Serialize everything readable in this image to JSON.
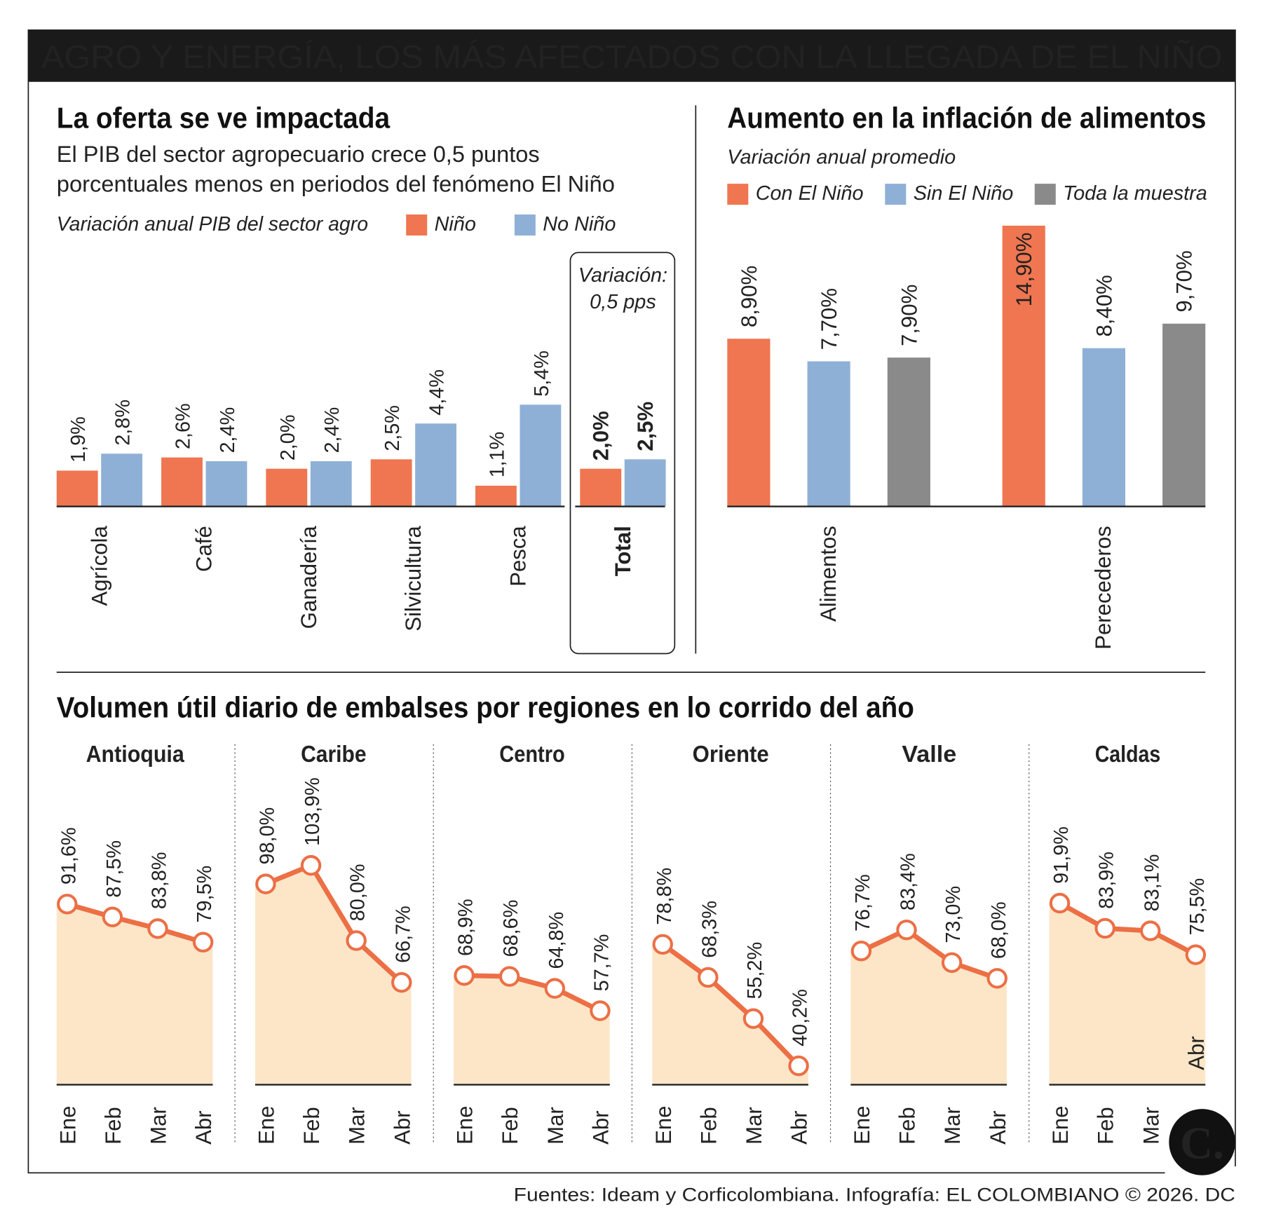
{
  "title": "AGRO Y ENERGÍA, LOS MÁS AFECTADOS CON LA LLEGADA DE EL NIÑO",
  "footer": "Fuentes: Ideam y Corficolombiana. Infografía: EL COLOMBIANO © 2026. DC",
  "logo": "C.",
  "colors": {
    "nino": "#ef7650",
    "no_nino": "#8fb0d6",
    "muestra": "#8a8a8a",
    "line": "#ec6f45",
    "area": "#fde6c8"
  },
  "chart_data": [
    {
      "type": "bar",
      "title": "La oferta se ve impactada",
      "subtitle": [
        "El PIB del sector agropecuario crece 0,5 puntos",
        "porcentuales menos en periodos del fenómeno El Niño"
      ],
      "ylabel": "Variación anual PIB del sector agro",
      "categories": [
        "Agrícola",
        "Café",
        "Ganadería",
        "Silvicultura",
        "Pesca",
        "Total"
      ],
      "series": [
        {
          "name": "Niño",
          "values": [
            1.9,
            2.6,
            2.0,
            2.5,
            1.1,
            2.0
          ],
          "labels": [
            "1,9%",
            "2,6%",
            "2,0%",
            "2,5%",
            "1,1%",
            "2,0%"
          ]
        },
        {
          "name": "No Niño",
          "values": [
            2.8,
            2.4,
            2.4,
            4.4,
            5.4,
            2.5
          ],
          "labels": [
            "2,8%",
            "2,4%",
            "2,4%",
            "4,4%",
            "5,4%",
            "2,5%"
          ]
        }
      ],
      "annotation": [
        "Variación:",
        "0,5 pps"
      ],
      "legend_position": "top-right"
    },
    {
      "type": "bar",
      "title": "Aumento en la inflación de alimentos",
      "ylabel": "Variación anual promedio",
      "categories": [
        "Alimentos",
        "Perecederos"
      ],
      "series": [
        {
          "name": "Con El Niño",
          "values": [
            8.9,
            14.9
          ],
          "labels": [
            "8,90%",
            "14,90%"
          ]
        },
        {
          "name": "Sin El Niño",
          "values": [
            7.7,
            8.4
          ],
          "labels": [
            "7,70%",
            "8,40%"
          ]
        },
        {
          "name": "Toda la muestra",
          "values": [
            7.9,
            9.7
          ],
          "labels": [
            "7,90%",
            "9,70%"
          ]
        }
      ],
      "legend_position": "top"
    },
    {
      "type": "area",
      "title": "Volumen útil diario de embalses por regiones en lo corrido del año",
      "x": [
        "Ene",
        "Feb",
        "Mar",
        "Abr"
      ],
      "extra_label": "Abr",
      "series": [
        {
          "name": "Antioquia",
          "values": [
            91.6,
            87.5,
            83.8,
            79.5
          ],
          "labels": [
            "91,6%",
            "87,5%",
            "83,8%",
            "79,5%"
          ]
        },
        {
          "name": "Caribe",
          "values": [
            98.0,
            103.9,
            80.0,
            66.7
          ],
          "labels": [
            "98,0%",
            "103,9%",
            "80,0%",
            "66,7%"
          ]
        },
        {
          "name": "Centro",
          "values": [
            68.9,
            68.6,
            64.8,
            57.7
          ],
          "labels": [
            "68,9%",
            "68,6%",
            "64,8%",
            "57,7%"
          ]
        },
        {
          "name": "Oriente",
          "values": [
            78.8,
            68.3,
            55.2,
            40.2
          ],
          "labels": [
            "78,8%",
            "68,3%",
            "55,2%",
            "40,2%"
          ]
        },
        {
          "name": "Valle",
          "values": [
            76.7,
            83.4,
            73.0,
            68.0
          ],
          "labels": [
            "76,7%",
            "83,4%",
            "73,0%",
            "68,0%"
          ]
        },
        {
          "name": "Caldas",
          "values": [
            91.9,
            83.9,
            83.1,
            75.5
          ],
          "labels": [
            "91,9%",
            "83,9%",
            "83,1%",
            "75,5%"
          ]
        }
      ]
    }
  ]
}
